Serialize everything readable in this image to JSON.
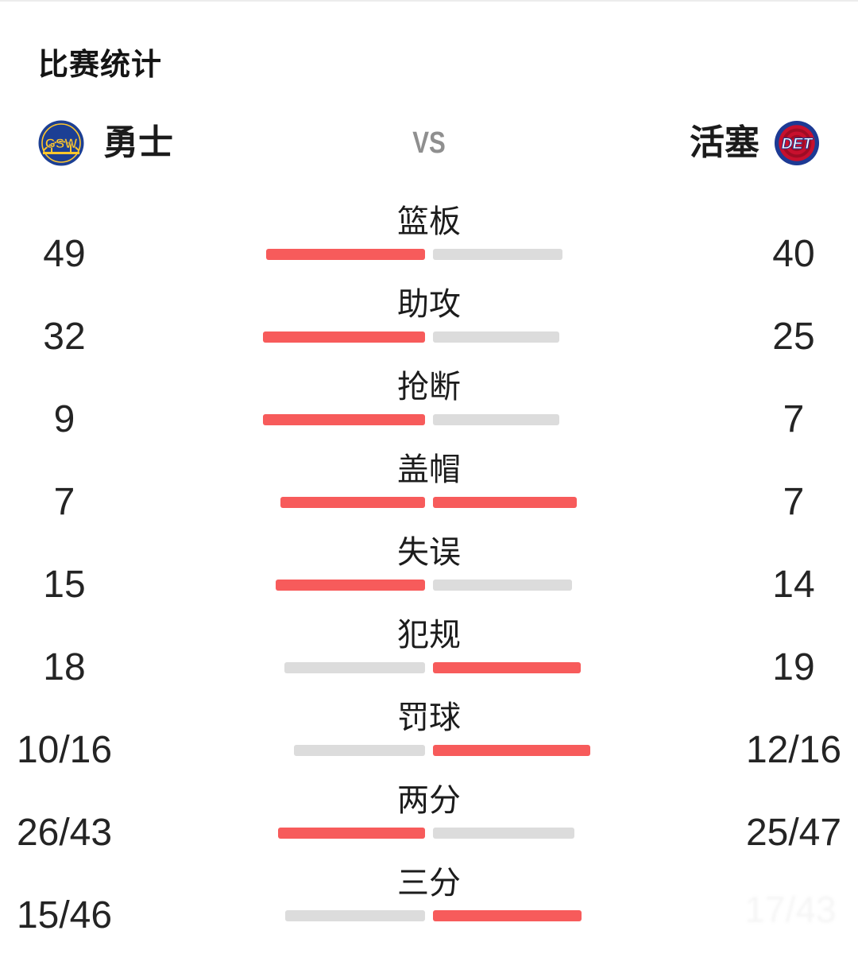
{
  "page": {
    "title": "比赛统计",
    "background": "#ffffff"
  },
  "teams": {
    "home": {
      "name": "勇士",
      "abbr": "GSW",
      "logo_primary": "#1c3f94",
      "logo_accent": "#ffc72c"
    },
    "away": {
      "name": "活塞",
      "abbr": "DET",
      "logo_primary": "#1d3a94",
      "logo_accent": "#c8102e",
      "logo_text": "#ffffff"
    },
    "vs_label": "VS"
  },
  "colors": {
    "bar_red": "#f75b5b",
    "bar_gray": "#dcdcdc",
    "text_dark": "#242424",
    "vs_gray": "#8f8f8f"
  },
  "stats": {
    "rows": [
      {
        "label": "篮板",
        "home_display": "49",
        "away_display": "40",
        "home_value": 49,
        "away_value": 40
      },
      {
        "label": "助攻",
        "home_display": "32",
        "away_display": "25",
        "home_value": 32,
        "away_value": 25
      },
      {
        "label": "抢断",
        "home_display": "9",
        "away_display": "7",
        "home_value": 9,
        "away_value": 7
      },
      {
        "label": "盖帽",
        "home_display": "7",
        "away_display": "7",
        "home_value": 7,
        "away_value": 7
      },
      {
        "label": "失误",
        "home_display": "15",
        "away_display": "14",
        "home_value": 15,
        "away_value": 14
      },
      {
        "label": "犯规",
        "home_display": "18",
        "away_display": "19",
        "home_value": 18,
        "away_value": 19
      },
      {
        "label": "罚球",
        "home_display": "10/16",
        "away_display": "12/16",
        "home_value": 10,
        "away_value": 12
      },
      {
        "label": "两分",
        "home_display": "26/43",
        "away_display": "25/47",
        "home_value": 26,
        "away_value": 25
      },
      {
        "label": "三分",
        "home_display": "15/46",
        "away_display": "",
        "home_value": 15,
        "away_value": 16
      }
    ]
  },
  "watermark": {
    "text": "17/43"
  },
  "chart_data": {
    "type": "bar",
    "orientation": "horizontal-paired",
    "title": "比赛统计",
    "categories": [
      "篮板",
      "助攻",
      "抢断",
      "盖帽",
      "失误",
      "犯规",
      "罚球",
      "两分",
      "三分"
    ],
    "series": [
      {
        "name": "勇士",
        "values": [
          49,
          32,
          9,
          7,
          15,
          18,
          10,
          26,
          15
        ],
        "display": [
          "49",
          "32",
          "9",
          "7",
          "15",
          "18",
          "10/16",
          "26/43",
          "15/46"
        ]
      },
      {
        "name": "活塞",
        "values": [
          40,
          25,
          7,
          7,
          14,
          19,
          12,
          25,
          16
        ],
        "display": [
          "40",
          "25",
          "7",
          "7",
          "14",
          "19",
          "12/16",
          "25/47",
          ""
        ]
      }
    ],
    "notes": "Each row: pair of bars growing outward from center; bar lengths proportional to value share of row total; larger value drawn red (#f75b5b), smaller gray (#dcdcdc), tie both red. Away 三分 value not legibly rendered; bar length implies ~16.",
    "legend_position": "none",
    "grid": false
  }
}
